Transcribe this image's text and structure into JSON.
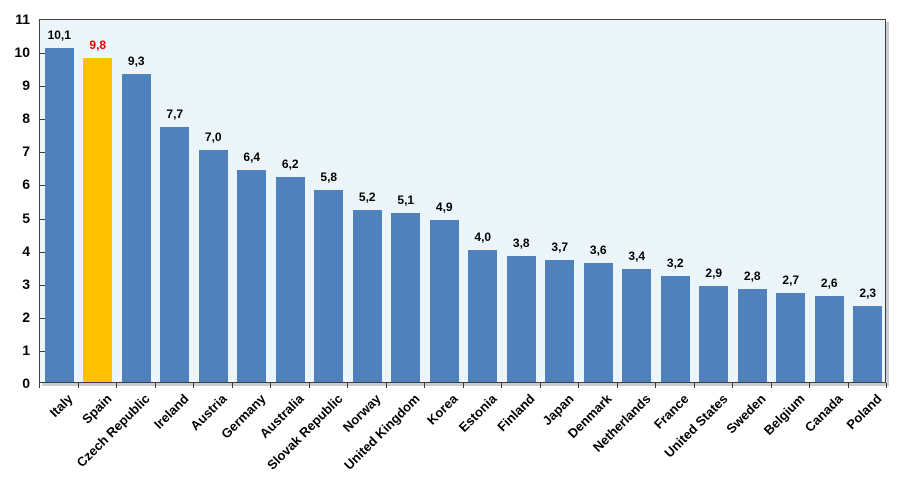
{
  "chart_data": {
    "type": "bar",
    "categories": [
      "Italy",
      "Spain",
      "Czech Republic",
      "Ireland",
      "Austria",
      "Germany",
      "Australia",
      "Slovak Republic",
      "Norway",
      "United Kingdom",
      "Korea",
      "Estonia",
      "Finland",
      "Japan",
      "Denmark",
      "Netherlands",
      "France",
      "United States",
      "Sweden",
      "Belgium",
      "Canada",
      "Poland"
    ],
    "values": [
      10.1,
      9.8,
      9.3,
      7.7,
      7.0,
      6.4,
      6.2,
      5.8,
      5.2,
      5.1,
      4.9,
      4.0,
      3.8,
      3.7,
      3.6,
      3.4,
      3.2,
      2.9,
      2.8,
      2.7,
      2.6,
      2.3
    ],
    "value_labels": [
      "10,1",
      "9,8",
      "9,3",
      "7,7",
      "7,0",
      "6,4",
      "6,2",
      "5,8",
      "5,2",
      "5,1",
      "4,9",
      "4,0",
      "3,8",
      "3,7",
      "3,6",
      "3,4",
      "3,2",
      "2,9",
      "2,8",
      "2,7",
      "2,6",
      "2,3"
    ],
    "highlight_index": 1,
    "title": "",
    "xlabel": "",
    "ylabel": "",
    "ylim": [
      0,
      11
    ],
    "yticks": [
      0,
      1,
      2,
      3,
      4,
      5,
      6,
      7,
      8,
      9,
      10,
      11
    ],
    "grid": false,
    "legend": "none",
    "colors": {
      "bar": "#4f81bd",
      "highlight_bar": "#ffc000",
      "value_label": "#000000",
      "highlight_value_label": "#e30000",
      "plot_background": "#ecf5fa",
      "plot_border": "#3f3f3f",
      "axis_text": "#000000"
    }
  }
}
